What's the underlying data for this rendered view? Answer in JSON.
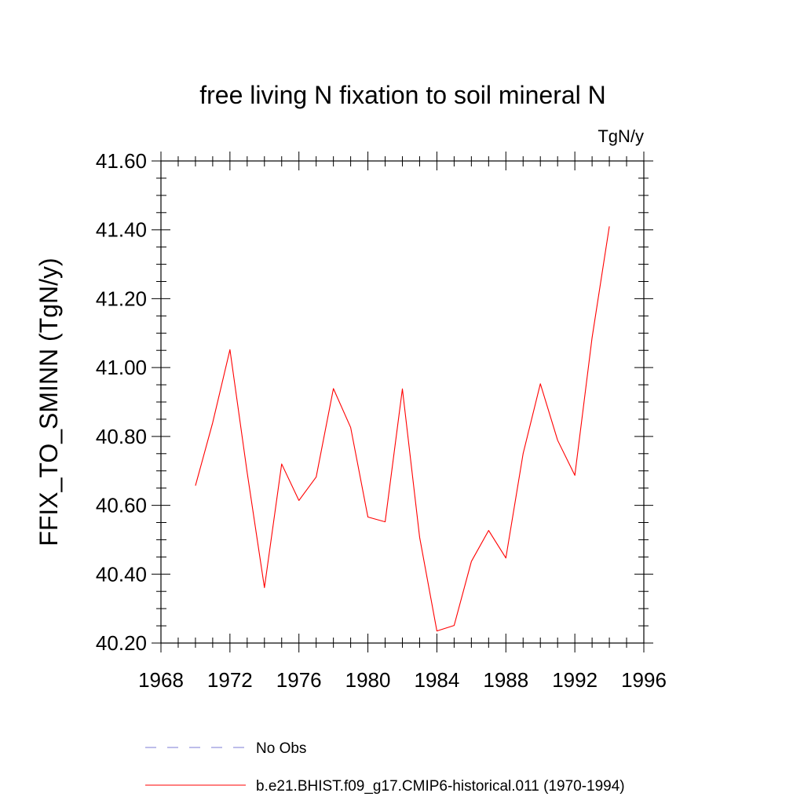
{
  "chart_data": {
    "type": "line",
    "title": "free living N fixation to soil mineral N",
    "units": "TgN/y",
    "ylabel": "FFIX_TO_SMINN  (TgN/y)",
    "xlabel": "",
    "xlim": [
      1968,
      1996
    ],
    "ylim": [
      40.2,
      41.6
    ],
    "xticks": [
      1968,
      1972,
      1976,
      1980,
      1984,
      1988,
      1992,
      1996
    ],
    "xtick_labels": [
      "1968",
      "1972",
      "1976",
      "1980",
      "1984",
      "1988",
      "1992",
      "1996"
    ],
    "yticks": [
      40.2,
      40.4,
      40.6,
      40.8,
      41.0,
      41.2,
      41.4,
      41.6
    ],
    "ytick_labels": [
      "40.20",
      "40.40",
      "40.60",
      "40.80",
      "41.00",
      "41.20",
      "41.40",
      "41.60"
    ],
    "grid": false,
    "legend_position": "bottom",
    "legend": [
      {
        "label": "No Obs",
        "color": "#7b7bd6",
        "style": "dashed"
      },
      {
        "label": "b.e21.BHIST.f09_g17.CMIP6-historical.011 (1970-1994)",
        "color": "#ff0000",
        "style": "solid"
      }
    ],
    "series": [
      {
        "name": "b.e21.BHIST.f09_g17.CMIP6-historical.011 (1970-1994)",
        "color": "#ff0000",
        "x": [
          1970,
          1971,
          1972,
          1973,
          1974,
          1975,
          1976,
          1977,
          1978,
          1979,
          1980,
          1981,
          1982,
          1983,
          1984,
          1985,
          1986,
          1987,
          1988,
          1989,
          1990,
          1991,
          1992,
          1993,
          1994
        ],
        "y": [
          40.657,
          40.84,
          41.052,
          40.695,
          40.361,
          40.72,
          40.614,
          40.682,
          40.939,
          40.826,
          40.566,
          40.552,
          40.938,
          40.507,
          40.235,
          40.251,
          40.437,
          40.527,
          40.447,
          40.75,
          40.953,
          40.789,
          40.687,
          41.087,
          41.41
        ]
      }
    ]
  }
}
